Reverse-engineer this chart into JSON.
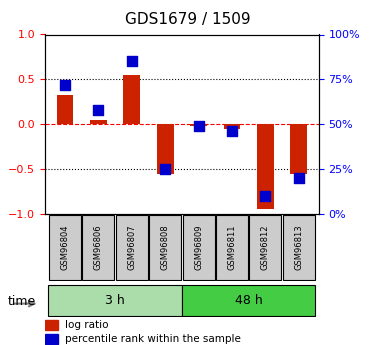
{
  "title": "GDS1679 / 1509",
  "samples": [
    "GSM96804",
    "GSM96806",
    "GSM96807",
    "GSM96808",
    "GSM96809",
    "GSM96811",
    "GSM96812",
    "GSM96813"
  ],
  "log_ratio": [
    0.33,
    0.05,
    0.55,
    -0.55,
    -0.02,
    -0.05,
    -0.95,
    -0.55
  ],
  "percentile_rank": [
    72,
    58,
    85,
    25,
    49,
    46,
    10,
    20
  ],
  "groups": [
    {
      "label": "3 h",
      "indices": [
        0,
        1,
        2,
        3
      ],
      "color": "#aaddaa"
    },
    {
      "label": "48 h",
      "indices": [
        4,
        5,
        6,
        7
      ],
      "color": "#44cc44"
    }
  ],
  "group_label_prefix": "time",
  "bar_color": "#cc2200",
  "dot_color": "#0000cc",
  "ylim": [
    -1,
    1
  ],
  "yticks_left": [
    -1,
    -0.5,
    0,
    0.5,
    1
  ],
  "yticks_right": [
    0,
    25,
    50,
    75,
    100
  ],
  "hlines": [
    0.5,
    0,
    -0.5
  ],
  "hline_colors": [
    "black",
    "red",
    "black"
  ],
  "hline_styles": [
    "dotted",
    "dashed",
    "dotted"
  ],
  "bar_width": 0.5,
  "dot_size": 50,
  "background_color": "#ffffff"
}
